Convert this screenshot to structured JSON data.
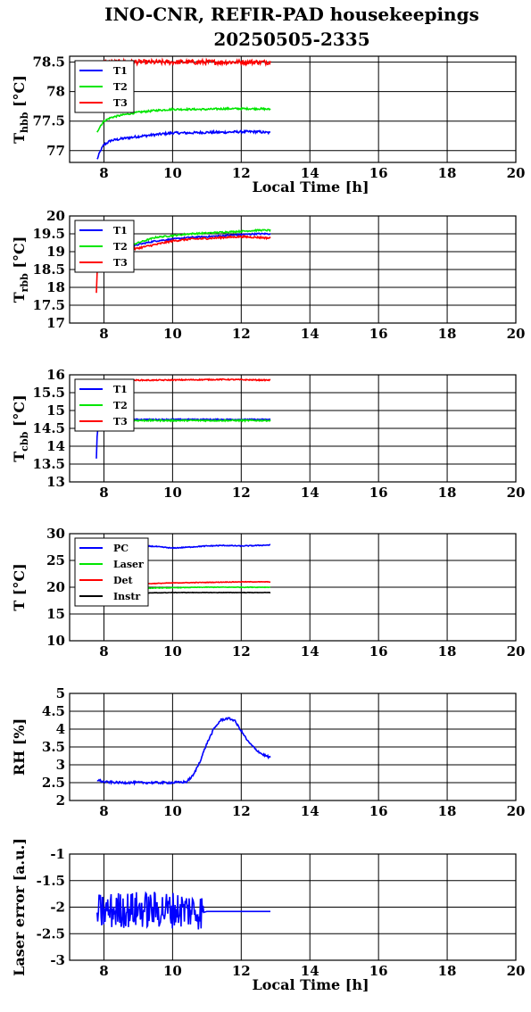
{
  "figure": {
    "title_line1": "INO-CNR, REFIR-PAD housekeepings",
    "title_line2": "20250505-2335"
  },
  "chart_data": [
    {
      "type": "line",
      "id": "tbbb",
      "ylabel": "T",
      "ylabel_sub": "hbb",
      "ylabel_unit": "[°C]",
      "xlabel": "Local Time [h]",
      "xlim": [
        7,
        20
      ],
      "ylim": [
        76.8,
        78.6
      ],
      "xticks": [
        8,
        10,
        12,
        14,
        16,
        18,
        20
      ],
      "yticks": [
        77,
        77.5,
        78,
        78.5
      ],
      "grid": true,
      "legend_position": "top-left",
      "series": [
        {
          "name": "T1",
          "color": "#0000ff",
          "points": [
            [
              7.8,
              76.85
            ],
            [
              7.9,
              77.0
            ],
            [
              8.0,
              77.1
            ],
            [
              8.2,
              77.17
            ],
            [
              8.5,
              77.2
            ],
            [
              9.0,
              77.24
            ],
            [
              9.5,
              77.27
            ],
            [
              10.0,
              77.3
            ],
            [
              10.5,
              77.3
            ],
            [
              11.0,
              77.31
            ],
            [
              11.5,
              77.31
            ],
            [
              12.0,
              77.32
            ],
            [
              12.5,
              77.32
            ],
            [
              12.85,
              77.3
            ]
          ],
          "noise": 0.02
        },
        {
          "name": "T2",
          "color": "#00e600",
          "points": [
            [
              7.8,
              77.32
            ],
            [
              7.9,
              77.42
            ],
            [
              8.0,
              77.5
            ],
            [
              8.2,
              77.56
            ],
            [
              8.5,
              77.6
            ],
            [
              9.0,
              77.65
            ],
            [
              9.5,
              77.68
            ],
            [
              10.0,
              77.7
            ],
            [
              10.5,
              77.7
            ],
            [
              11.0,
              77.7
            ],
            [
              11.5,
              77.71
            ],
            [
              12.0,
              77.71
            ],
            [
              12.5,
              77.71
            ],
            [
              12.85,
              77.7
            ]
          ],
          "noise": 0.015
        },
        {
          "name": "T3",
          "color": "#ff0000",
          "points": [
            [
              7.8,
              78.5
            ],
            [
              8.5,
              78.5
            ],
            [
              9.5,
              78.5
            ],
            [
              10.5,
              78.5
            ],
            [
              11.5,
              78.5
            ],
            [
              12.85,
              78.5
            ]
          ],
          "noise": 0.04
        }
      ]
    },
    {
      "type": "line",
      "id": "trbb",
      "ylabel": "T",
      "ylabel_sub": "rbb",
      "ylabel_unit": "[°C]",
      "xlabel": "",
      "xlim": [
        7,
        20
      ],
      "ylim": [
        17,
        20
      ],
      "xticks": [
        8,
        10,
        12,
        14,
        16,
        18,
        20
      ],
      "yticks": [
        17,
        17.5,
        18,
        18.5,
        19,
        19.5,
        20
      ],
      "grid": true,
      "legend_position": "top-left",
      "series": [
        {
          "name": "T1",
          "color": "#0000ff",
          "points": [
            [
              7.8,
              18.85
            ],
            [
              8.0,
              18.95
            ],
            [
              8.5,
              19.05
            ],
            [
              9.0,
              19.2
            ],
            [
              9.5,
              19.3
            ],
            [
              10.0,
              19.35
            ],
            [
              10.5,
              19.4
            ],
            [
              11.0,
              19.42
            ],
            [
              11.5,
              19.45
            ],
            [
              12.0,
              19.48
            ],
            [
              12.5,
              19.5
            ],
            [
              12.85,
              19.5
            ]
          ],
          "noise": 0.02
        },
        {
          "name": "T2",
          "color": "#00e600",
          "points": [
            [
              7.8,
              18.95
            ],
            [
              8.0,
              19.0
            ],
            [
              8.5,
              19.1
            ],
            [
              9.0,
              19.25
            ],
            [
              9.5,
              19.4
            ],
            [
              10.0,
              19.45
            ],
            [
              10.5,
              19.5
            ],
            [
              11.0,
              19.52
            ],
            [
              11.5,
              19.55
            ],
            [
              12.0,
              19.57
            ],
            [
              12.5,
              19.6
            ],
            [
              12.85,
              19.6
            ]
          ],
          "noise": 0.02
        },
        {
          "name": "T3",
          "color": "#ff0000",
          "points": [
            [
              7.78,
              17.85
            ],
            [
              7.8,
              18.4
            ],
            [
              7.82,
              18.75
            ],
            [
              8.0,
              18.9
            ],
            [
              8.5,
              19.0
            ],
            [
              9.0,
              19.1
            ],
            [
              9.5,
              19.2
            ],
            [
              10.0,
              19.3
            ],
            [
              10.5,
              19.35
            ],
            [
              11.0,
              19.37
            ],
            [
              11.5,
              19.4
            ],
            [
              12.0,
              19.42
            ],
            [
              12.5,
              19.4
            ],
            [
              12.85,
              19.38
            ]
          ],
          "noise": 0.025
        }
      ]
    },
    {
      "type": "line",
      "id": "tcbb",
      "ylabel": "T",
      "ylabel_sub": "cbb",
      "ylabel_unit": "[°C]",
      "xlabel": "",
      "xlim": [
        7,
        20
      ],
      "ylim": [
        13,
        16
      ],
      "xticks": [
        8,
        10,
        12,
        14,
        16,
        18,
        20
      ],
      "yticks": [
        13,
        13.5,
        14,
        14.5,
        15,
        15.5,
        16
      ],
      "grid": true,
      "legend_position": "top-left",
      "series": [
        {
          "name": "T1",
          "color": "#0000ff",
          "points": [
            [
              7.78,
              13.65
            ],
            [
              7.8,
              14.3
            ],
            [
              7.85,
              14.7
            ],
            [
              8.0,
              14.75
            ],
            [
              9.0,
              14.75
            ],
            [
              10.0,
              14.75
            ],
            [
              11.0,
              14.75
            ],
            [
              12.0,
              14.75
            ],
            [
              12.85,
              14.75
            ]
          ],
          "noise": 0.015
        },
        {
          "name": "T2",
          "color": "#00e600",
          "points": [
            [
              7.8,
              14.72
            ],
            [
              8.5,
              14.72
            ],
            [
              9.5,
              14.72
            ],
            [
              10.5,
              14.72
            ],
            [
              11.5,
              14.72
            ],
            [
              12.85,
              14.72
            ]
          ],
          "noise": 0.02
        },
        {
          "name": "T3",
          "color": "#ff0000",
          "points": [
            [
              7.8,
              15.85
            ],
            [
              8.5,
              15.85
            ],
            [
              9.5,
              15.85
            ],
            [
              10.5,
              15.86
            ],
            [
              11.5,
              15.87
            ],
            [
              12.85,
              15.85
            ]
          ],
          "noise": 0.015
        }
      ]
    },
    {
      "type": "line",
      "id": "temps",
      "ylabel": "T [°C]",
      "ylabel_sub": "",
      "ylabel_unit": "",
      "xlabel": "",
      "xlim": [
        7,
        20
      ],
      "ylim": [
        10,
        30
      ],
      "xticks": [
        8,
        10,
        12,
        14,
        16,
        18,
        20
      ],
      "yticks": [
        10,
        15,
        20,
        25,
        30
      ],
      "grid": true,
      "legend_position": "top-left",
      "series": [
        {
          "name": "PC",
          "color": "#0000ff",
          "points": [
            [
              7.8,
              27.2
            ],
            [
              8.5,
              27.6
            ],
            [
              9.0,
              27.8
            ],
            [
              9.5,
              27.6
            ],
            [
              10.0,
              27.3
            ],
            [
              10.5,
              27.5
            ],
            [
              11.0,
              27.7
            ],
            [
              11.5,
              27.8
            ],
            [
              12.0,
              27.7
            ],
            [
              12.5,
              27.8
            ],
            [
              12.85,
              27.9
            ]
          ],
          "noise": 0.08
        },
        {
          "name": "Laser",
          "color": "#00e600",
          "points": [
            [
              7.8,
              19.6
            ],
            [
              9.0,
              19.8
            ],
            [
              10.0,
              19.9
            ],
            [
              11.0,
              20.0
            ],
            [
              12.0,
              20.0
            ],
            [
              12.85,
              20.0
            ]
          ],
          "noise": 0.05
        },
        {
          "name": "Det",
          "color": "#ff0000",
          "points": [
            [
              7.8,
              20.3
            ],
            [
              9.0,
              20.6
            ],
            [
              10.0,
              20.8
            ],
            [
              11.0,
              20.9
            ],
            [
              12.0,
              21.0
            ],
            [
              12.85,
              21.0
            ]
          ],
          "noise": 0.05
        },
        {
          "name": "Instr",
          "color": "#000000",
          "points": [
            [
              7.8,
              18.8
            ],
            [
              9.0,
              18.9
            ],
            [
              10.0,
              19.0
            ],
            [
              11.0,
              19.0
            ],
            [
              12.0,
              19.0
            ],
            [
              12.85,
              19.0
            ]
          ],
          "noise": 0.04
        }
      ]
    },
    {
      "type": "line",
      "id": "rh",
      "ylabel": "RH [%]",
      "ylabel_sub": "",
      "ylabel_unit": "",
      "xlabel": "",
      "xlim": [
        7,
        20
      ],
      "ylim": [
        2,
        5
      ],
      "xticks": [
        8,
        10,
        12,
        14,
        16,
        18,
        20
      ],
      "yticks": [
        2,
        2.5,
        3,
        3.5,
        4,
        4.5,
        5
      ],
      "grid": true,
      "legend_position": "none",
      "series": [
        {
          "color": "#0000ff",
          "points": [
            [
              7.8,
              2.58
            ],
            [
              8.0,
              2.52
            ],
            [
              8.5,
              2.5
            ],
            [
              9.0,
              2.5
            ],
            [
              9.5,
              2.5
            ],
            [
              10.0,
              2.5
            ],
            [
              10.4,
              2.52
            ],
            [
              10.6,
              2.7
            ],
            [
              10.8,
              3.1
            ],
            [
              11.0,
              3.6
            ],
            [
              11.2,
              4.0
            ],
            [
              11.4,
              4.25
            ],
            [
              11.6,
              4.3
            ],
            [
              11.8,
              4.25
            ],
            [
              12.0,
              3.95
            ],
            [
              12.2,
              3.65
            ],
            [
              12.4,
              3.45
            ],
            [
              12.6,
              3.3
            ],
            [
              12.85,
              3.2
            ]
          ],
          "noise": 0.03
        }
      ]
    },
    {
      "type": "line",
      "id": "laser",
      "ylabel": "Laser error [a.u.]",
      "ylabel_sub": "",
      "ylabel_unit": "",
      "xlabel": "Local Time [h]",
      "xlim": [
        7,
        20
      ],
      "ylim": [
        -3,
        -1
      ],
      "xticks": [
        8,
        10,
        12,
        14,
        16,
        18,
        20
      ],
      "yticks": [
        -3,
        -2.5,
        -2,
        -1.5,
        -1
      ],
      "grid": true,
      "legend_position": "none",
      "series": [
        {
          "color": "#0000ff",
          "points": [
            [
              7.8,
              -2.1
            ],
            [
              8.5,
              -2.05
            ],
            [
              9.5,
              -2.05
            ],
            [
              10.5,
              -2.05
            ],
            [
              10.9,
              -2.1
            ],
            [
              11.0,
              -2.08
            ],
            [
              12.0,
              -2.08
            ],
            [
              12.85,
              -2.08
            ]
          ],
          "noise": 0.0,
          "jitter_until": 10.9,
          "jitter_amp": 0.35
        }
      ]
    }
  ]
}
